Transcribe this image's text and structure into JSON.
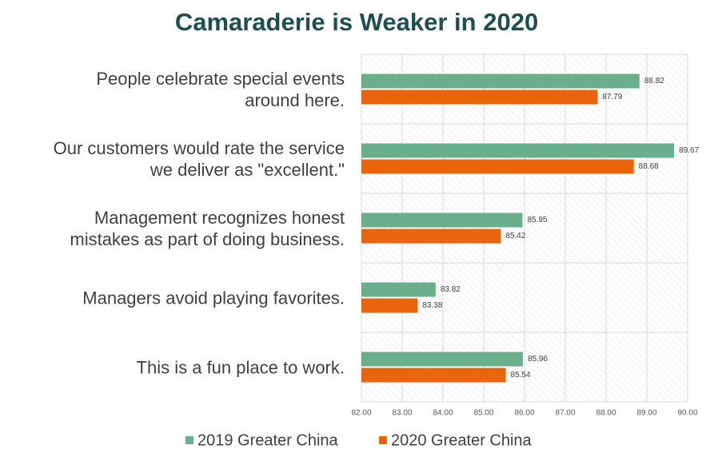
{
  "chart_data": {
    "type": "bar",
    "orientation": "horizontal",
    "title": "Camaraderie is Weaker in 2020",
    "categories": [
      "People celebrate special events\naround here.",
      "Our customers would rate the service\nwe deliver as \"excellent.\"",
      "Management recognizes honest\nmistakes as part of doing business.",
      "Managers avoid playing favorites.",
      "This is a fun place to work."
    ],
    "series": [
      {
        "name": "2019 Greater China",
        "color": "#6aaf8c",
        "values": [
          88.82,
          89.67,
          85.95,
          83.82,
          85.96
        ]
      },
      {
        "name": "2020 Greater China",
        "color": "#e8650e",
        "values": [
          87.79,
          88.68,
          85.42,
          83.38,
          85.54
        ]
      }
    ],
    "xlim": [
      82,
      90
    ],
    "xticks": [
      {
        "value": 82,
        "label": "82.00"
      },
      {
        "value": 83,
        "label": "83.00"
      },
      {
        "value": 84,
        "label": "84.00"
      },
      {
        "value": 85,
        "label": "85.00"
      },
      {
        "value": 86,
        "label": "86.00"
      },
      {
        "value": 87,
        "label": "87.00"
      },
      {
        "value": 88,
        "label": "88.00"
      },
      {
        "value": 89,
        "label": "89.00"
      },
      {
        "value": 90,
        "label": "90.00"
      }
    ],
    "grid": true,
    "legend": "bottom"
  }
}
